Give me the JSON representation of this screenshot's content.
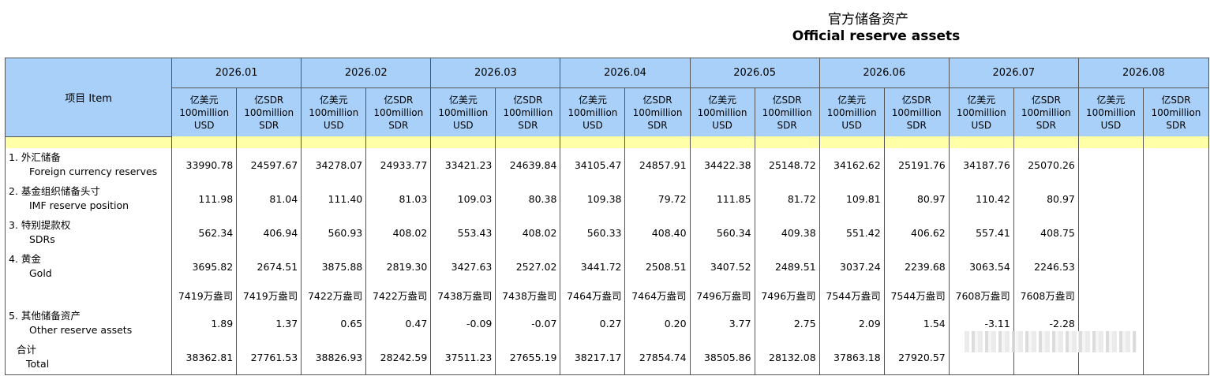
{
  "title_cn": "官方储备资产",
  "title_en": "Official reserve assets",
  "item_header": "项目 Item",
  "months": [
    "2026.01",
    "2026.02",
    "2026.03",
    "2026.04",
    "2026.05",
    "2026.06",
    "2026.07",
    "2026.08"
  ],
  "unit_usd": {
    "cn": "亿美元",
    "en1": "100million",
    "en2": "USD"
  },
  "unit_sdr": {
    "cn": "亿SDR",
    "en1": "100million",
    "en2": "SDR"
  },
  "rows": [
    {
      "cn": "1.  外汇储备",
      "en": "Foreign currency reserves",
      "values": [
        "33990.78",
        "24597.67",
        "34278.07",
        "24933.77",
        "33421.23",
        "24639.84",
        "34105.47",
        "24857.91",
        "34422.38",
        "25148.72",
        "34162.62",
        "25191.76",
        "34187.76",
        "25070.26",
        "",
        ""
      ]
    },
    {
      "cn": "2.  基金组织储备头寸",
      "en": "IMF reserve position",
      "values": [
        "111.98",
        "81.04",
        "111.40",
        "81.03",
        "109.03",
        "80.38",
        "109.38",
        "79.72",
        "111.85",
        "81.72",
        "109.81",
        "80.97",
        "110.42",
        "80.97",
        "",
        ""
      ]
    },
    {
      "cn": "3.  特别提款权",
      "en": "SDRs",
      "values": [
        "562.34",
        "406.94",
        "560.93",
        "408.02",
        "553.43",
        "408.02",
        "560.33",
        "408.40",
        "560.34",
        "409.38",
        "551.42",
        "406.62",
        "557.41",
        "408.75",
        "",
        ""
      ]
    },
    {
      "cn": "4.  黄金",
      "en": "Gold",
      "values": [
        "3695.82",
        "2674.51",
        "3875.88",
        "2819.30",
        "3427.63",
        "2527.02",
        "3441.72",
        "2508.51",
        "3407.52",
        "2489.51",
        "3037.24",
        "2239.68",
        "3063.54",
        "2246.53",
        "",
        ""
      ]
    },
    {
      "cn": "",
      "en": "",
      "values": [
        "7419万盎司",
        "7419万盎司",
        "7422万盎司",
        "7422万盎司",
        "7438万盎司",
        "7438万盎司",
        "7464万盎司",
        "7464万盎司",
        "7496万盎司",
        "7496万盎司",
        "7544万盎司",
        "7544万盎司",
        "7608万盎司",
        "7608万盎司",
        "",
        ""
      ]
    },
    {
      "cn": "5.  其他储备资产",
      "en": "Other reserve assets",
      "values": [
        "1.89",
        "1.37",
        "0.65",
        "0.47",
        "-0.09",
        "-0.07",
        "0.27",
        "0.20",
        "3.77",
        "2.75",
        "2.09",
        "1.54",
        "-3.11",
        "-2.28",
        "",
        ""
      ]
    },
    {
      "cn": "合计",
      "en": "Total",
      "values": [
        "38362.81",
        "27761.53",
        "38826.93",
        "28242.59",
        "37511.23",
        "27655.19",
        "38217.17",
        "27854.74",
        "38505.86",
        "28132.08",
        "37863.18",
        "27920.57",
        "",
        "",
        "",
        ""
      ]
    }
  ]
}
